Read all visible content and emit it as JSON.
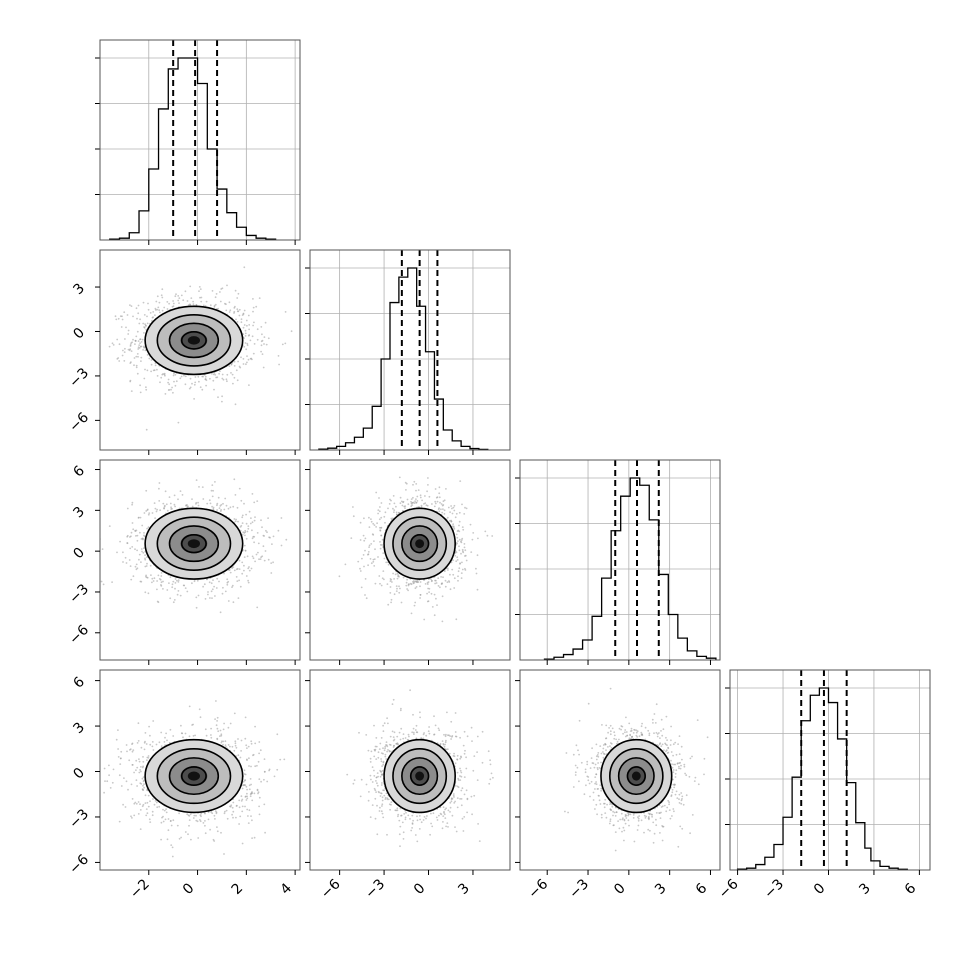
{
  "chart_data": {
    "type": "corner",
    "grid": true,
    "n_params": 4,
    "colors": {
      "line": "#000000",
      "grid": "#b0b0b0",
      "scatter": "#9a9a9a"
    },
    "axis_ranges": [
      [
        -4,
        4.2
      ],
      [
        -8,
        5.5
      ],
      [
        -8,
        6.7
      ],
      [
        -6.5,
        6.7
      ]
    ],
    "x_tick_labels": [
      [
        "−2",
        "0",
        "2",
        "4"
      ],
      [
        "−6",
        "−3",
        "0",
        "3"
      ],
      [
        "−6",
        "−3",
        "0",
        "3",
        "6"
      ],
      [
        "−6",
        "−3",
        "0",
        "3",
        "6"
      ]
    ],
    "x_ticks": [
      [
        -2,
        0,
        2,
        4
      ],
      [
        -6,
        -3,
        0,
        3
      ],
      [
        -6,
        -3,
        0,
        3,
        6
      ],
      [
        -6,
        -3,
        0,
        3,
        6
      ]
    ],
    "y_tick_labels": [
      [],
      [
        "3",
        "0",
        "−3",
        "−6"
      ],
      [
        "6",
        "3",
        "0",
        "−3",
        "−6"
      ],
      [
        "6",
        "3",
        "0",
        "−3",
        "−6"
      ]
    ],
    "y_ticks": [
      [],
      [
        3,
        0,
        -3,
        -6
      ],
      [
        6,
        3,
        0,
        -3,
        -6
      ],
      [
        6,
        3,
        0,
        -3,
        -6
      ]
    ],
    "hist_y_ticks": [
      0.25,
      0.5,
      0.75,
      1.0
    ],
    "diagonal": [
      {
        "param": 0,
        "quantiles": [
          -1.0,
          -0.1,
          0.8
        ],
        "bin_edges": [
          -3.6,
          -3.2,
          -2.8,
          -2.4,
          -2.0,
          -1.6,
          -1.2,
          -0.8,
          -0.4,
          0.0,
          0.4,
          0.8,
          1.2,
          1.6,
          2.0,
          2.4,
          2.8,
          3.2
        ],
        "counts": [
          0.005,
          0.01,
          0.04,
          0.16,
          0.39,
          0.72,
          0.94,
          1.0,
          1.0,
          0.86,
          0.5,
          0.28,
          0.15,
          0.07,
          0.025,
          0.01,
          0.005
        ]
      },
      {
        "param": 1,
        "quantiles": [
          -1.8,
          -0.6,
          0.6
        ],
        "bin_edges": [
          -7.4,
          -6.8,
          -6.2,
          -5.6,
          -5.0,
          -4.4,
          -3.8,
          -3.2,
          -2.6,
          -2.0,
          -1.4,
          -0.8,
          -0.2,
          0.4,
          1.0,
          1.6,
          2.2,
          2.8,
          3.4,
          4.0
        ],
        "counts": [
          0.005,
          0.01,
          0.02,
          0.04,
          0.07,
          0.12,
          0.24,
          0.5,
          0.81,
          0.95,
          1.0,
          0.79,
          0.54,
          0.28,
          0.11,
          0.05,
          0.02,
          0.008,
          0.003
        ]
      },
      {
        "param": 2,
        "quantiles": [
          -1.0,
          0.6,
          2.2
        ],
        "bin_edges": [
          -6.2,
          -5.5,
          -4.8,
          -4.1,
          -3.4,
          -2.7,
          -2.0,
          -1.3,
          -0.6,
          0.1,
          0.8,
          1.5,
          2.2,
          2.9,
          3.6,
          4.3,
          5.0,
          5.7,
          6.4
        ],
        "counts": [
          0.005,
          0.015,
          0.03,
          0.06,
          0.11,
          0.24,
          0.45,
          0.71,
          0.9,
          1.0,
          0.96,
          0.77,
          0.47,
          0.25,
          0.12,
          0.05,
          0.02,
          0.01
        ]
      },
      {
        "param": 3,
        "quantiles": [
          -1.8,
          -0.3,
          1.2
        ],
        "bin_edges": [
          -6.0,
          -5.4,
          -4.8,
          -4.2,
          -3.6,
          -3.0,
          -2.4,
          -1.8,
          -1.2,
          -0.6,
          0.0,
          0.6,
          1.2,
          1.8,
          2.4,
          2.8,
          3.4,
          4.0,
          4.6,
          5.2
        ],
        "counts": [
          0.005,
          0.01,
          0.03,
          0.07,
          0.14,
          0.29,
          0.51,
          0.82,
          0.96,
          1.0,
          0.92,
          0.72,
          0.48,
          0.26,
          0.12,
          0.05,
          0.02,
          0.01,
          0.004
        ]
      }
    ],
    "pairs": [
      {
        "x_param": 0,
        "y_param": 1,
        "center": [
          -0.15,
          -0.6
        ],
        "spread": [
          1.0,
          1.15
        ],
        "rho": 0.0
      },
      {
        "x_param": 0,
        "y_param": 2,
        "center": [
          -0.15,
          0.55
        ],
        "spread": [
          1.0,
          1.3
        ],
        "rho": 0.0
      },
      {
        "x_param": 1,
        "y_param": 2,
        "center": [
          -0.6,
          0.55
        ],
        "spread": [
          1.2,
          1.3
        ],
        "rho": 0.0
      },
      {
        "x_param": 0,
        "y_param": 3,
        "center": [
          -0.15,
          -0.3
        ],
        "spread": [
          1.0,
          1.2
        ],
        "rho": 0.0
      },
      {
        "x_param": 1,
        "y_param": 3,
        "center": [
          -0.6,
          -0.3
        ],
        "spread": [
          1.2,
          1.2
        ],
        "rho": 0.0
      },
      {
        "x_param": 2,
        "y_param": 3,
        "center": [
          0.55,
          -0.3
        ],
        "spread": [
          1.3,
          1.2
        ],
        "rho": 0.0
      }
    ],
    "contour_levels_sigma": [
      0.5,
      1.0,
      1.5,
      2.0
    ]
  }
}
